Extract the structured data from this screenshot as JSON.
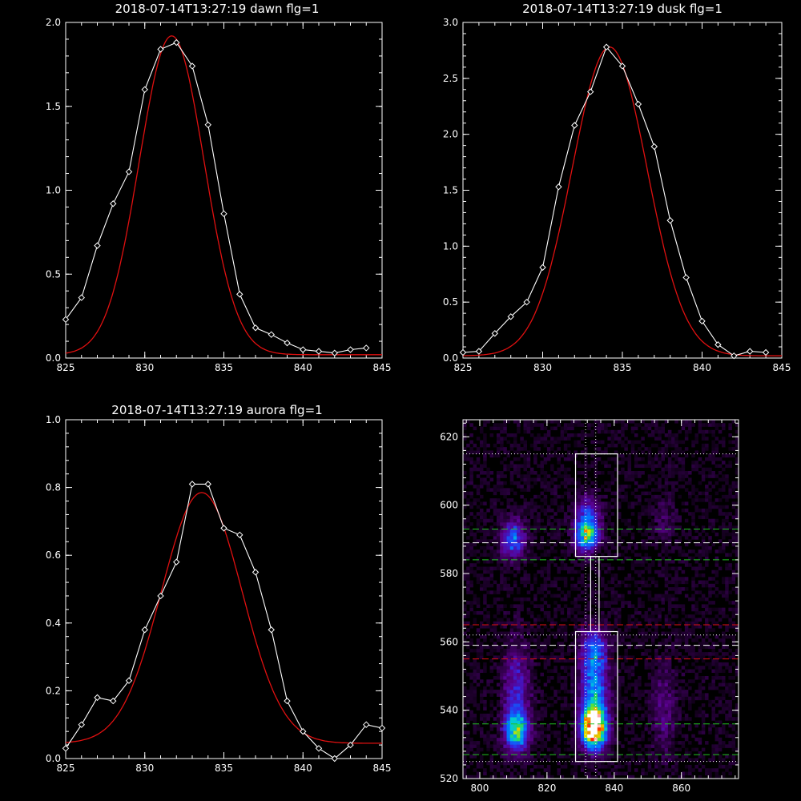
{
  "chart_data": [
    {
      "type": "line",
      "title": "2018-07-14T13:27:19 dawn flg=1",
      "xlim": [
        825,
        845
      ],
      "ylim": [
        0,
        2.0
      ],
      "xticks": [
        825,
        830,
        835,
        840,
        845
      ],
      "yticks": [
        0.0,
        0.5,
        1.0,
        1.5,
        2.0
      ],
      "xtick_labels": [
        "825",
        "830",
        "835",
        "840",
        "845"
      ],
      "ytick_labels": [
        "0.0",
        "0.5",
        "1.0",
        "1.5",
        "2.0"
      ],
      "series": [
        {
          "kind": "data",
          "color": "#ffffff",
          "x": [
            825,
            826,
            827,
            828,
            829,
            830,
            831,
            832,
            833,
            834,
            835,
            836,
            837,
            838,
            839,
            840,
            841,
            842,
            843,
            844
          ],
          "y": [
            0.23,
            0.36,
            0.67,
            0.92,
            1.11,
            1.6,
            1.84,
            1.88,
            1.74,
            1.39,
            0.86,
            0.38,
            0.18,
            0.14,
            0.09,
            0.05,
            0.04,
            0.03,
            0.05,
            0.06
          ]
        },
        {
          "kind": "fit",
          "color": "#e01010",
          "x": [],
          "y": []
        }
      ],
      "fit": {
        "amp": 1.9,
        "center": 831.7,
        "sigma": 2.05,
        "offset": 0.02
      }
    },
    {
      "type": "line",
      "title": "2018-07-14T13:27:19 dusk flg=1",
      "xlim": [
        825,
        845
      ],
      "ylim": [
        0,
        3.0
      ],
      "xticks": [
        825,
        830,
        835,
        840,
        845
      ],
      "yticks": [
        0.0,
        0.5,
        1.0,
        1.5,
        2.0,
        2.5,
        3.0
      ],
      "xtick_labels": [
        "825",
        "830",
        "835",
        "840",
        "845"
      ],
      "ytick_labels": [
        "0.0",
        "0.5",
        "1.0",
        "1.5",
        "2.0",
        "2.5",
        "3.0"
      ],
      "series": [
        {
          "kind": "data",
          "color": "#ffffff",
          "x": [
            825,
            826,
            827,
            828,
            829,
            830,
            831,
            832,
            833,
            834,
            835,
            836,
            837,
            838,
            839,
            840,
            841,
            842,
            843,
            844
          ],
          "y": [
            0.05,
            0.06,
            0.22,
            0.37,
            0.5,
            0.81,
            1.53,
            2.08,
            2.38,
            2.78,
            2.61,
            2.27,
            1.89,
            1.23,
            0.72,
            0.33,
            0.12,
            0.02,
            0.06,
            0.05
          ]
        },
        {
          "kind": "fit",
          "color": "#e01010",
          "x": [],
          "y": []
        }
      ],
      "fit": {
        "amp": 2.76,
        "center": 834.2,
        "sigma": 2.35,
        "offset": 0.02
      }
    },
    {
      "type": "line",
      "title": "2018-07-14T13:27:19 aurora flg=1",
      "xlim": [
        825,
        845
      ],
      "ylim": [
        0,
        1.0
      ],
      "xticks": [
        825,
        830,
        835,
        840,
        845
      ],
      "yticks": [
        0.0,
        0.2,
        0.4,
        0.6,
        0.8,
        1.0
      ],
      "xtick_labels": [
        "825",
        "830",
        "835",
        "840",
        "845"
      ],
      "ytick_labels": [
        "0.0",
        "0.2",
        "0.4",
        "0.6",
        "0.8",
        "1.0"
      ],
      "series": [
        {
          "kind": "data",
          "color": "#ffffff",
          "x": [
            825,
            826,
            827,
            828,
            829,
            830,
            831,
            832,
            833,
            834,
            835,
            836,
            837,
            838,
            839,
            840,
            841,
            842,
            843,
            844,
            845
          ],
          "y": [
            0.03,
            0.1,
            0.18,
            0.17,
            0.23,
            0.38,
            0.48,
            0.58,
            0.81,
            0.81,
            0.68,
            0.66,
            0.55,
            0.38,
            0.17,
            0.08,
            0.03,
            0.0,
            0.04,
            0.1,
            0.09
          ]
        },
        {
          "kind": "fit",
          "color": "#e01010",
          "x": [],
          "y": []
        }
      ],
      "fit": {
        "amp": 0.74,
        "center": 833.6,
        "sigma": 2.55,
        "offset": 0.045
      }
    },
    {
      "type": "heatmap",
      "xlim": [
        795,
        877
      ],
      "ylim": [
        520,
        625
      ],
      "xticks": [
        800,
        820,
        840,
        860
      ],
      "yticks": [
        520,
        540,
        560,
        580,
        600,
        620
      ],
      "xtick_labels": [
        "800",
        "820",
        "840",
        "860"
      ],
      "ytick_labels": [
        "520",
        "540",
        "560",
        "580",
        "600",
        "620"
      ],
      "blobs": [
        {
          "x": 834,
          "y": 535,
          "sx": 2.5,
          "sy": 4,
          "a": 1.0
        },
        {
          "x": 834,
          "y": 546,
          "sx": 2.8,
          "sy": 9,
          "a": 0.45
        },
        {
          "x": 834,
          "y": 558,
          "sx": 2.8,
          "sy": 4,
          "a": 0.25
        },
        {
          "x": 832,
          "y": 591,
          "sx": 2.5,
          "sy": 3,
          "a": 0.6
        },
        {
          "x": 832,
          "y": 597,
          "sx": 2.5,
          "sy": 4,
          "a": 0.3
        },
        {
          "x": 811,
          "y": 534,
          "sx": 2.5,
          "sy": 4,
          "a": 0.55
        },
        {
          "x": 811,
          "y": 546,
          "sx": 2.8,
          "sy": 10,
          "a": 0.25
        },
        {
          "x": 810,
          "y": 590,
          "sx": 2.5,
          "sy": 4,
          "a": 0.4
        },
        {
          "x": 855,
          "y": 540,
          "sx": 2.5,
          "sy": 10,
          "a": 0.15
        },
        {
          "x": 855,
          "y": 595,
          "sx": 2.5,
          "sy": 5,
          "a": 0.1
        }
      ],
      "boxes": [
        {
          "x0": 828.5,
          "x1": 841,
          "y0": 585,
          "y1": 615
        },
        {
          "x0": 828.5,
          "x1": 841,
          "y0": 525,
          "y1": 563
        },
        {
          "x0": 833,
          "x1": 835.5,
          "y0": 563,
          "y1": 585
        }
      ],
      "hlines": [
        {
          "y": 615,
          "color": "#ffffff",
          "style": "dotted"
        },
        {
          "y": 593,
          "color": "#20c020",
          "style": "dashed"
        },
        {
          "y": 589,
          "color": "#ffffff",
          "style": "dashed"
        },
        {
          "y": 584,
          "color": "#20c020",
          "style": "dashed"
        },
        {
          "y": 565,
          "color": "#e01010",
          "style": "dashed"
        },
        {
          "y": 562,
          "color": "#ffffff",
          "style": "dotted"
        },
        {
          "y": 559,
          "color": "#ffffff",
          "style": "dashed"
        },
        {
          "y": 555,
          "color": "#e01010",
          "style": "dashed"
        },
        {
          "y": 536,
          "color": "#20c020",
          "style": "dashed"
        },
        {
          "y": 527,
          "color": "#20c020",
          "style": "dashed"
        },
        {
          "y": 525,
          "color": "#ffffff",
          "style": "dotted"
        }
      ],
      "vlines": [
        {
          "x": 831.5,
          "color": "#ffffff",
          "style": "dotted"
        },
        {
          "x": 834.5,
          "color": "#ffffff",
          "style": "dotted"
        }
      ]
    }
  ]
}
